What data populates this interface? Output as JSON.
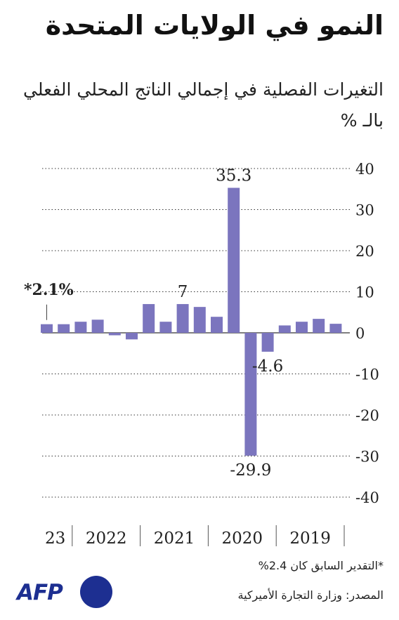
{
  "title": "النمو في الولايات المتحدة",
  "subtitle": "التغيرات الفصلية في إجمالي الناتج المحلي الفعلي بالـ %",
  "footnote": "*التقدير السابق كان 2.4%",
  "source": "المصدر: وزارة التجارة الأميركية",
  "logo": "AFP",
  "colors": {
    "bar": "#7b75be",
    "logo_text": "#1d2f91",
    "logo_dot": "#1d2f91"
  },
  "chart_data": {
    "type": "bar",
    "x_direction": "right-to-left",
    "ylim": [
      -40,
      40
    ],
    "yticks": [
      40,
      30,
      20,
      10,
      0,
      -10,
      -20,
      -30,
      -40
    ],
    "grid": true,
    "values": [
      2.2,
      3.4,
      2.7,
      1.8,
      -4.6,
      -29.9,
      35.3,
      3.9,
      6.3,
      7.0,
      2.7,
      7.0,
      -1.6,
      -0.6,
      3.2,
      2.7,
      2.1,
      2.1
    ],
    "year_groups": [
      {
        "label": "2019",
        "count": 4
      },
      {
        "label": "2020",
        "count": 4
      },
      {
        "label": "2021",
        "count": 4
      },
      {
        "label": "2022",
        "count": 4
      },
      {
        "label": "23",
        "count": 2
      }
    ],
    "value_labels": [
      {
        "index": 4,
        "text": "-4.6",
        "pos": "below"
      },
      {
        "index": 5,
        "text": "-29.9",
        "pos": "below"
      },
      {
        "index": 6,
        "text": "35.3",
        "pos": "above"
      },
      {
        "index": 9,
        "text": "7",
        "pos": "above"
      }
    ],
    "highlight": {
      "index": 17,
      "text": "*2.1%"
    }
  }
}
